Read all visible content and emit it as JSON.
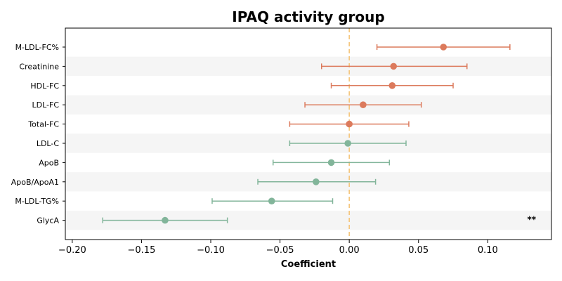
{
  "chart_data": {
    "type": "scatter",
    "subtype": "forest-plot",
    "title": "IPAQ activity group",
    "xlabel": "Coefficient",
    "ylabel": "",
    "xlim": [
      -0.205,
      0.146
    ],
    "xticks": [
      -0.2,
      -0.15,
      -0.1,
      -0.05,
      0.0,
      0.05,
      0.1
    ],
    "xtick_labels": [
      "−0.20",
      "−0.15",
      "−0.10",
      "−0.05",
      "0.00",
      "0.05",
      "0.10"
    ],
    "reference_line": 0.0,
    "row_banding": true,
    "grid": false,
    "colors": {
      "positive": "#dc7a5c",
      "negative": "#82b59a",
      "reference": "#f5c57a",
      "band": "#f5f5f5"
    },
    "categories": [
      "M-LDL-FC%",
      "Creatinine",
      "HDL-FC",
      "LDL-FC",
      "Total-FC",
      "LDL-C",
      "ApoB",
      "ApoB/ApoA1",
      "M-LDL-TG%",
      "GlycA"
    ],
    "values": [
      0.068,
      0.032,
      0.031,
      0.01,
      0.0,
      -0.001,
      -0.013,
      -0.024,
      -0.056,
      -0.133
    ],
    "ci_low": [
      0.02,
      -0.02,
      -0.013,
      -0.032,
      -0.043,
      -0.043,
      -0.055,
      -0.066,
      -0.099,
      -0.178
    ],
    "ci_high": [
      0.116,
      0.085,
      0.075,
      0.052,
      0.043,
      0.041,
      0.029,
      0.019,
      -0.012,
      -0.088
    ],
    "significance": [
      "",
      "",
      "",
      "",
      "",
      "",
      "",
      "",
      "",
      "**"
    ]
  }
}
